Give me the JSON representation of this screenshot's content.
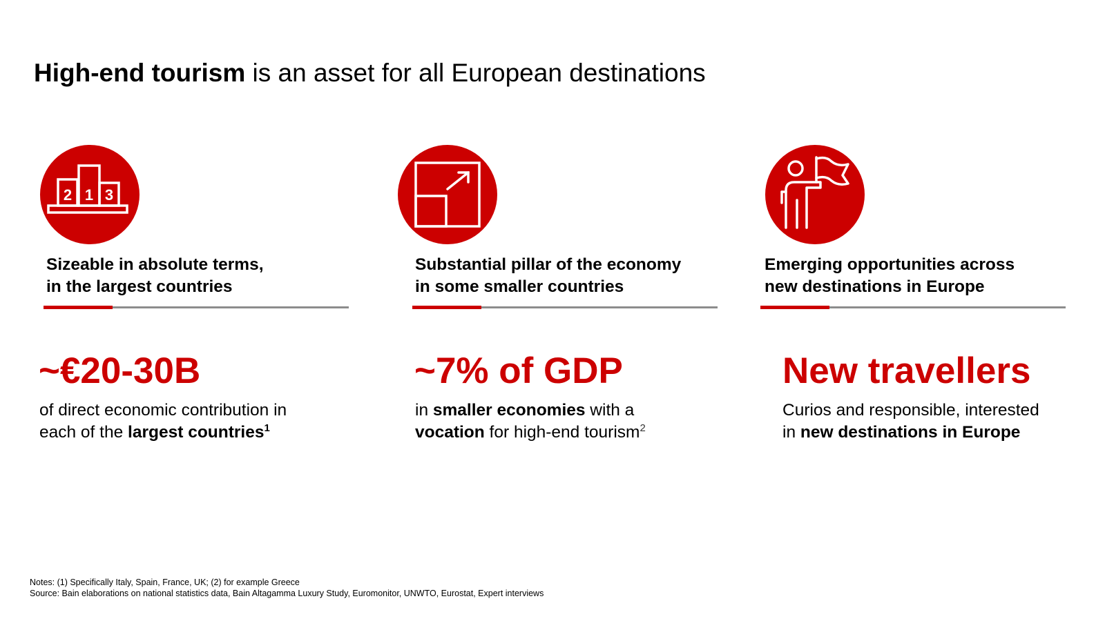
{
  "title": {
    "bold": "High-end tourism",
    "rest": " is an asset for all European destinations"
  },
  "columns": [
    {
      "icon": "podium-icon",
      "heading_line1": "Sizeable in absolute terms,",
      "heading_line2": "in the largest countries",
      "big_value": "~€20-30B",
      "desc": {
        "line1": "of direct economic contribution in",
        "line2_pre": "each of the ",
        "line2_bold": "largest countries",
        "line2_sup": "1"
      }
    },
    {
      "icon": "growth-arrow-icon",
      "heading_line1": "Substantial pillar of the economy",
      "heading_line2": "in some smaller countries",
      "big_value": "~7% of GDP",
      "desc": {
        "line1_pre": "in ",
        "line1_bold": "smaller economies",
        "line1_post": " with a",
        "line2_bold": "vocation",
        "line2_post": " for high-end tourism",
        "line2_sup": "2"
      }
    },
    {
      "icon": "person-flag-icon",
      "heading_line1": "Emerging opportunities across",
      "heading_line2": "new destinations in Europe",
      "big_value": "New travellers",
      "desc": {
        "line1": "Curios and responsible, interested",
        "line2_pre": "in ",
        "line2_bold": "new destinations in Europe"
      }
    }
  ],
  "notes": "Notes: (1) Specifically Italy, Spain, France, UK; (2) for example Greece",
  "source": "Source: Bain elaborations on national statistics data, Bain Altagamma Luxury Study, Euromonitor, UNWTO, Eurostat, Expert interviews",
  "colors": {
    "accent": "#cc0000",
    "rule": "#8c8c8c",
    "text": "#000000"
  }
}
